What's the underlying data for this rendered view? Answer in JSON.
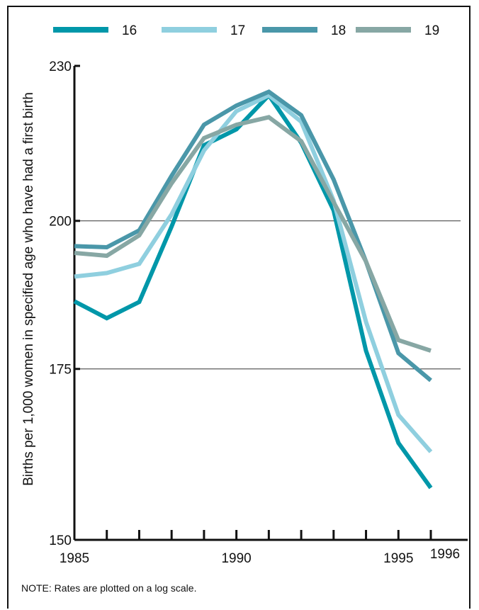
{
  "chart_data": {
    "type": "line",
    "ylabel": "Births per 1,000 women in specified age who have had a first birth",
    "yscale": "log",
    "ylim": [
      150,
      230
    ],
    "yticks": [
      150,
      175,
      200,
      230
    ],
    "gridlines": [
      175,
      200
    ],
    "xlim": [
      1985,
      1996
    ],
    "xticks": [
      1985,
      1986,
      1987,
      1988,
      1989,
      1990,
      1991,
      1992,
      1993,
      1994,
      1995,
      1996
    ],
    "xtick_labels": [
      {
        "value": 1985,
        "label": "1985"
      },
      {
        "value": 1990,
        "label": "1990"
      },
      {
        "value": 1995,
        "label": "1995"
      },
      {
        "value": 1996,
        "label": "1996"
      }
    ],
    "legend_position": "top",
    "x": [
      1985,
      1986,
      1987,
      1988,
      1989,
      1990,
      1991,
      1992,
      1993,
      1994,
      1995,
      1996
    ],
    "series": [
      {
        "name": "16",
        "color": "#0097a9",
        "values": [
          186.0,
          183.2,
          185.9,
          199.0,
          214.1,
          217.2,
          224.0,
          214.6,
          201.9,
          177.9,
          163.7,
          157.2
        ]
      },
      {
        "name": "17",
        "color": "#8fcfdf",
        "values": [
          190.2,
          190.8,
          192.4,
          201.2,
          213.1,
          220.8,
          224.0,
          218.7,
          203.7,
          182.6,
          167.9,
          162.4
        ]
      },
      {
        "name": "18",
        "color": "#4a97a9",
        "values": [
          195.5,
          195.3,
          198.3,
          208.3,
          218.1,
          221.9,
          224.7,
          220.0,
          207.6,
          192.8,
          177.5,
          173.2
        ]
      },
      {
        "name": "19",
        "color": "#87a7a4",
        "values": [
          194.3,
          193.8,
          197.4,
          206.9,
          215.5,
          218.1,
          219.6,
          214.9,
          203.4,
          192.8,
          179.6,
          177.9
        ]
      }
    ]
  },
  "note": "NOTE: Rates are plotted on a log scale."
}
